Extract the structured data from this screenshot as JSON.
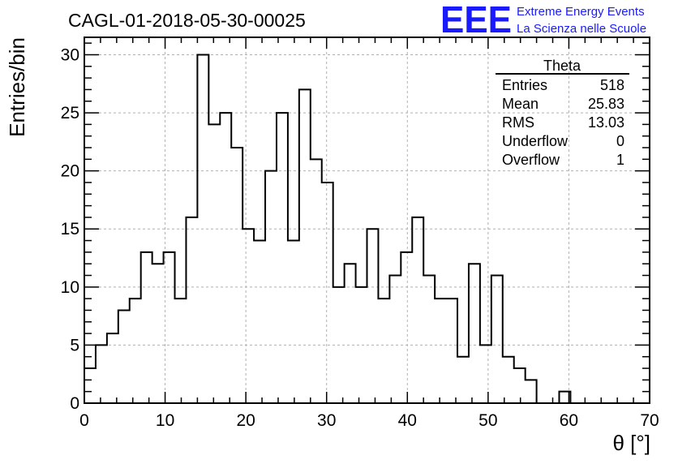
{
  "chart_data": {
    "type": "bar",
    "histogram": true,
    "title": "CAGL-01-2018-05-30-00025",
    "xlabel": "θ [°]",
    "ylabel": "Entries/bin",
    "xlim": [
      0,
      70
    ],
    "ylim": [
      0,
      31.5
    ],
    "bin_width": 1.4,
    "x_ticks": [
      0,
      10,
      20,
      30,
      40,
      50,
      60,
      70
    ],
    "y_ticks": [
      0,
      5,
      10,
      15,
      20,
      25,
      30
    ],
    "grid": true,
    "values": [
      3,
      5,
      6,
      8,
      9,
      13,
      12,
      13,
      9,
      16,
      30,
      24,
      25,
      22,
      15,
      14,
      20,
      25,
      14,
      27,
      21,
      19,
      10,
      12,
      10,
      15,
      9,
      11,
      13,
      16,
      11,
      9,
      9,
      4,
      12,
      5,
      11,
      4,
      3,
      2,
      0,
      0,
      1,
      0,
      0,
      0,
      0,
      0,
      0,
      0
    ]
  },
  "stats_box": {
    "title": "Theta",
    "rows": [
      {
        "label": "Entries",
        "value": "518"
      },
      {
        "label": "Mean",
        "value": "25.83"
      },
      {
        "label": "RMS",
        "value": "13.03"
      },
      {
        "label": "Underflow",
        "value": "0"
      },
      {
        "label": "Overflow",
        "value": "1"
      }
    ]
  },
  "logo": {
    "text": "EEE",
    "line1": "Extreme Energy Events",
    "line2": "La Scienza nelle Scuole",
    "color": "#1a1aff"
  },
  "colors": {
    "histogram": "#000000",
    "grid": "#b0b0b0",
    "frame": "#000000"
  }
}
